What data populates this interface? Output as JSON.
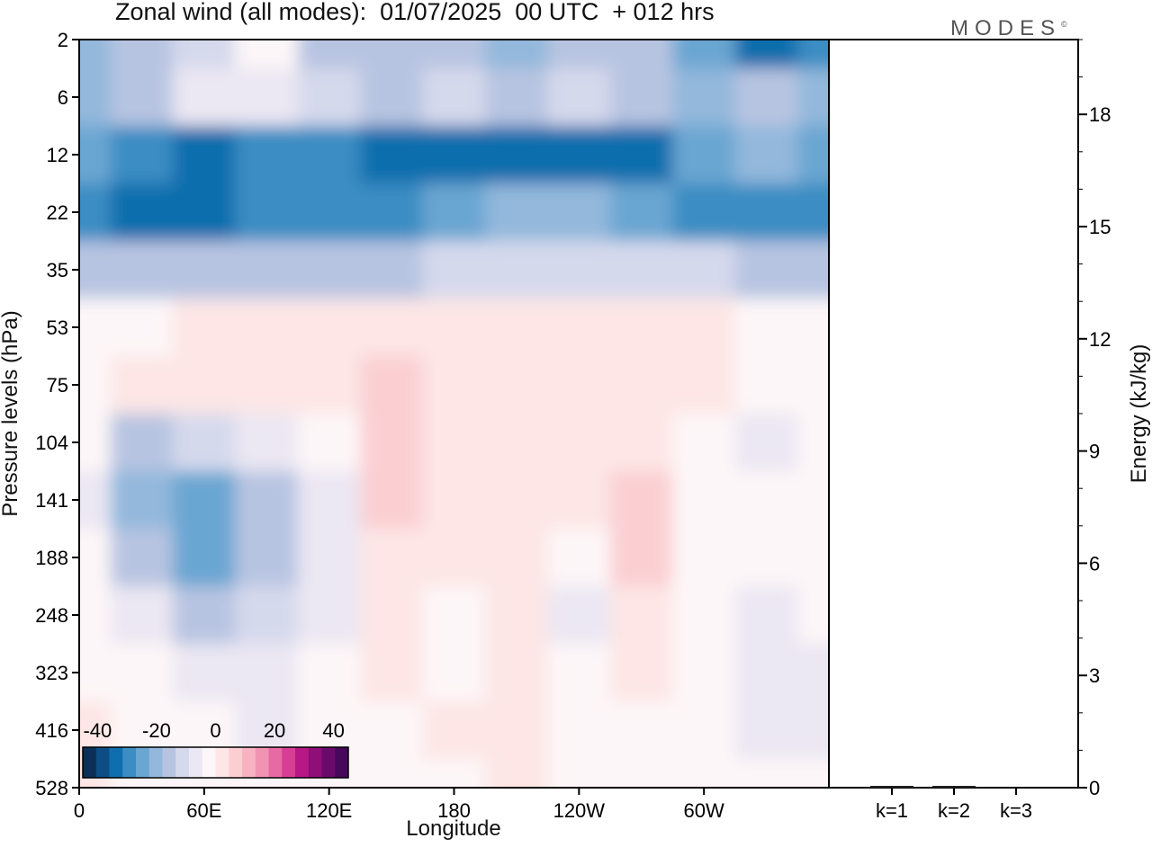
{
  "header": {
    "title": "Zonal wind (all modes):  01/07/2025  00 UTC  + 012 hrs",
    "logo": "MODES",
    "logo_mark": "©"
  },
  "chart_data": [
    {
      "type": "heatmap",
      "title": "Zonal wind (all modes):  01/07/2025  00 UTC  + 012 hrs",
      "xlabel": "Longitude",
      "ylabel": "Pressure levels (hPa)",
      "x_ticks": [
        "0",
        "60E",
        "120E",
        "180",
        "120W",
        "60W"
      ],
      "x_tick_degrees": [
        0,
        60,
        120,
        180,
        240,
        300
      ],
      "x_range_degrees": [
        0,
        360
      ],
      "y_ticks": [
        "2",
        "6",
        "12",
        "22",
        "35",
        "53",
        "75",
        "104",
        "141",
        "188",
        "248",
        "323",
        "416",
        "528"
      ],
      "y_axis_inverted": true,
      "levels": [
        2,
        6,
        12,
        22,
        35,
        53,
        75,
        104,
        141,
        188,
        248,
        323,
        416,
        528
      ],
      "longitudes": [
        0,
        30,
        60,
        90,
        120,
        150,
        180,
        210,
        240,
        270,
        300,
        330,
        360
      ],
      "values": [
        [
          -22,
          -18,
          -10,
          -4,
          -14,
          -18,
          -14,
          -20,
          -14,
          -18,
          -26,
          -34,
          -30
        ],
        [
          -20,
          -14,
          -8,
          -6,
          -10,
          -18,
          -12,
          -18,
          -12,
          -16,
          -20,
          -18,
          -22
        ],
        [
          -26,
          -30,
          -32,
          -30,
          -30,
          -32,
          -34,
          -32,
          -34,
          -33,
          -26,
          -22,
          -24
        ],
        [
          -30,
          -32,
          -32,
          -30,
          -28,
          -28,
          -26,
          -20,
          -22,
          -26,
          -30,
          -28,
          -30
        ],
        [
          -18,
          -16,
          -16,
          -14,
          -14,
          -14,
          -12,
          -12,
          -10,
          -10,
          -12,
          -14,
          -16
        ],
        [
          -4,
          -2,
          1,
          1,
          1,
          1,
          1,
          1,
          1,
          1,
          1,
          -1,
          -2
        ],
        [
          -1,
          0,
          2,
          1,
          1,
          5,
          4,
          2,
          1,
          1,
          1,
          -2,
          -2
        ],
        [
          -4,
          -14,
          -10,
          -6,
          -2,
          6,
          4,
          1,
          0,
          3,
          -2,
          -6,
          -4
        ],
        [
          -8,
          -20,
          -26,
          -18,
          -6,
          6,
          2,
          2,
          0,
          8,
          -1,
          -4,
          -2
        ],
        [
          -4,
          -16,
          -24,
          -16,
          -8,
          4,
          0,
          2,
          -4,
          6,
          -2,
          -2,
          -4
        ],
        [
          -2,
          -6,
          -14,
          -10,
          -6,
          2,
          -1,
          0,
          -6,
          3,
          -1,
          -6,
          -4
        ],
        [
          -1,
          -2,
          -6,
          -8,
          -4,
          0,
          -1,
          1,
          -3,
          0,
          -2,
          -8,
          -6
        ],
        [
          0,
          -1,
          -2,
          -6,
          -2,
          -1,
          0,
          1,
          -2,
          -1,
          -2,
          -6,
          -6
        ],
        [
          0,
          -1,
          -1,
          -4,
          -2,
          -1,
          -1,
          0,
          -1,
          -1,
          -1,
          -4,
          -4
        ]
      ],
      "colorbar": {
        "labels": [
          "-40",
          "-20",
          "0",
          "20",
          "40"
        ],
        "min": -45,
        "max": 45,
        "colors": [
          "#0b2f55",
          "#0d4d83",
          "#0f6ead",
          "#3b8dc3",
          "#6aa6d2",
          "#93b8dc",
          "#b7c4e1",
          "#d5d9ec",
          "#ebe7f3",
          "#fdf6f8",
          "#fde6e5",
          "#fbcfd2",
          "#f7b3c1",
          "#f193b2",
          "#e86aa5",
          "#d73e95",
          "#b71885",
          "#8f0e78",
          "#6a0b6c",
          "#47075c"
        ]
      }
    },
    {
      "type": "bar",
      "ylabel": "Energy (kJ/kg)",
      "categories": [
        "k=1",
        "k=2",
        "k=3"
      ],
      "values": [
        0.03,
        0.02,
        0.0
      ],
      "ylim": [
        0,
        20
      ],
      "y_ticks": [
        "0",
        "3",
        "6",
        "9",
        "12",
        "15",
        "18"
      ]
    }
  ]
}
